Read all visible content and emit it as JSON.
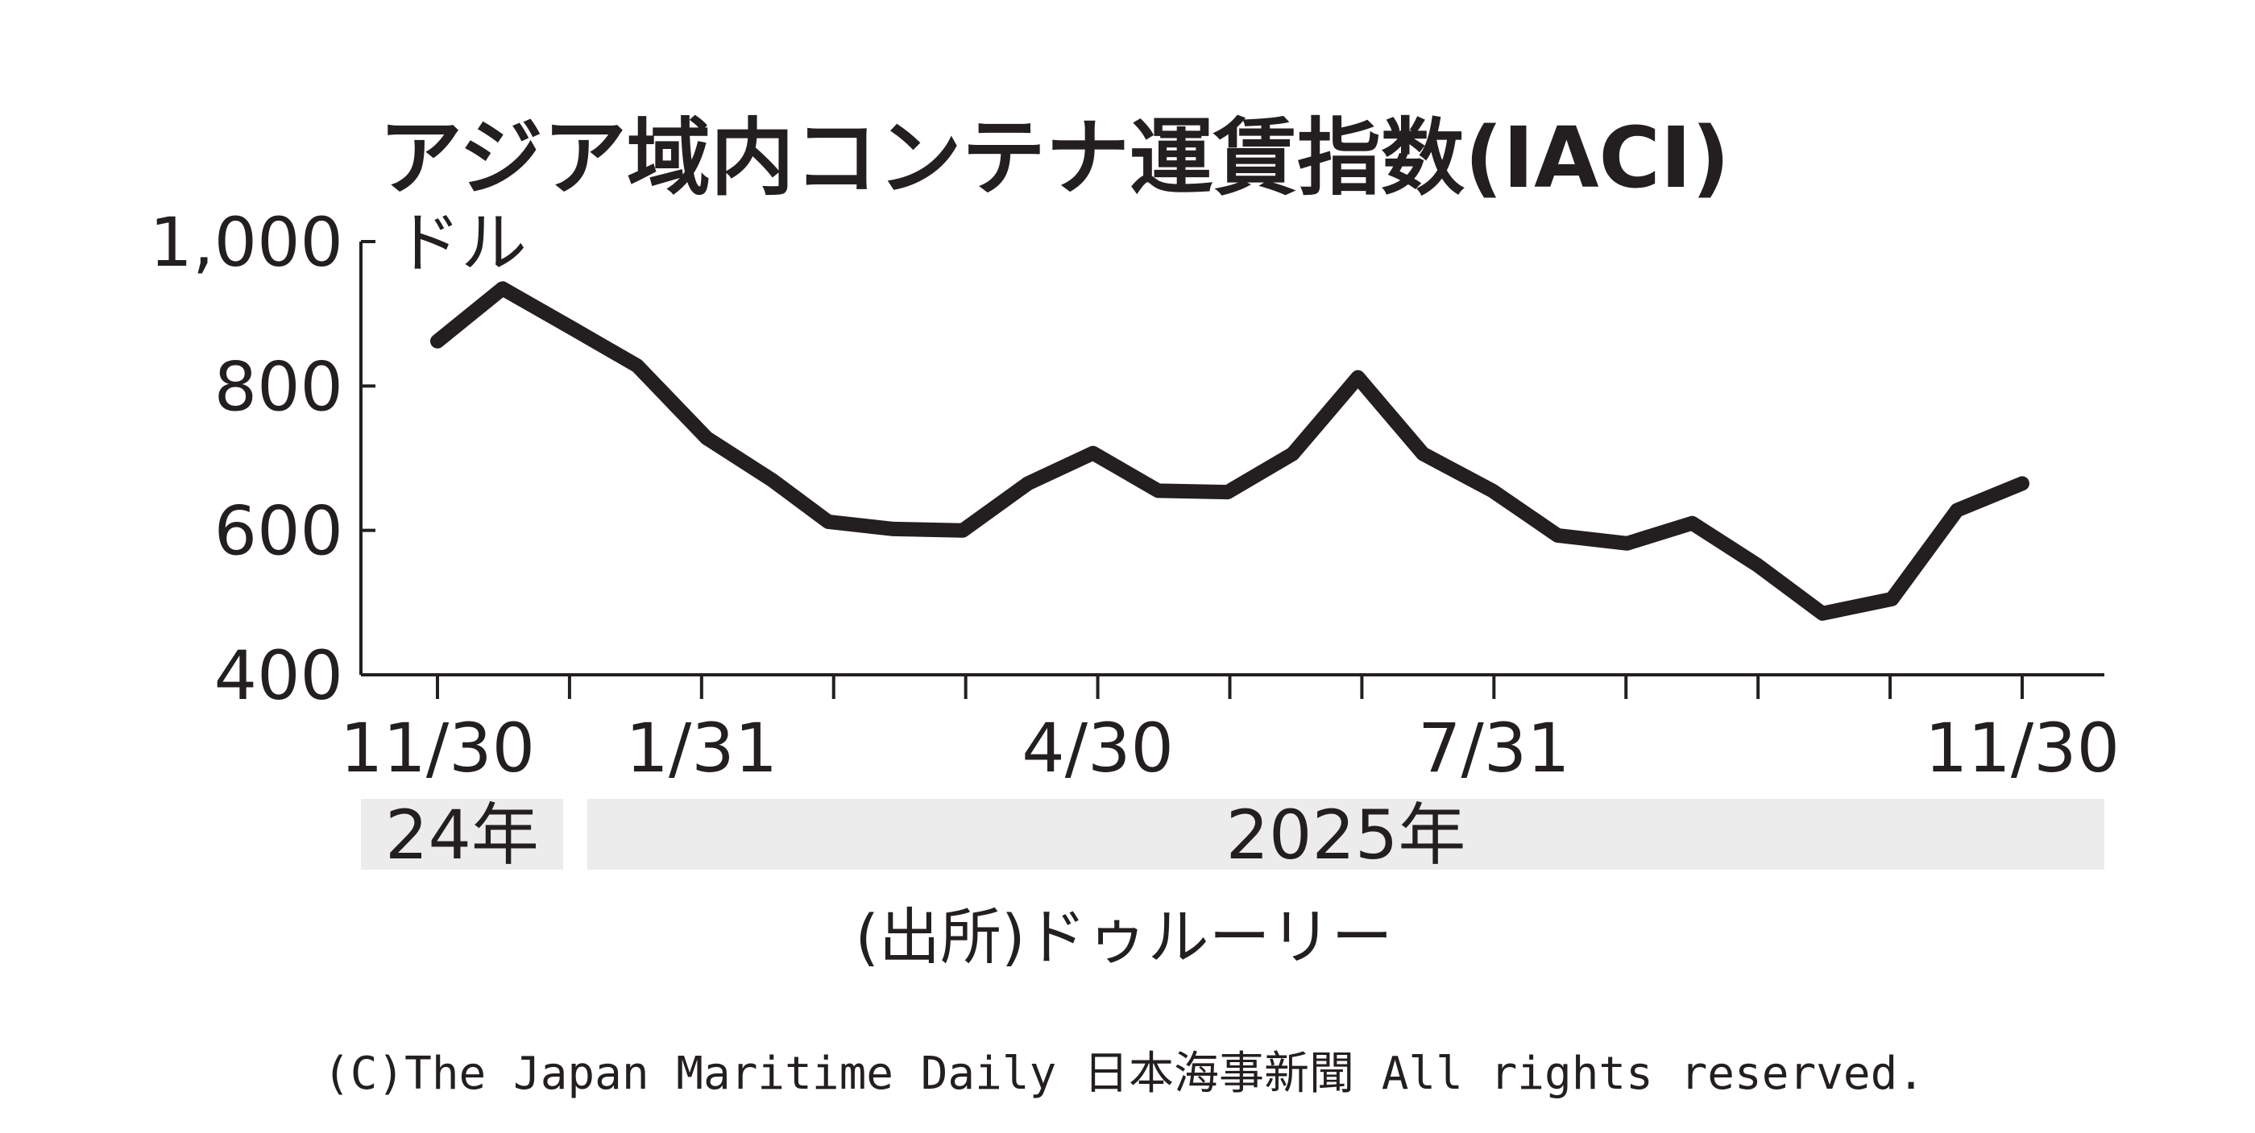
{
  "colors": {
    "ink": "#231f20",
    "band": "#ececec",
    "background": "#ffffff"
  },
  "chart_data": {
    "type": "line",
    "title": "アジア域内コンテナ運賃指数(IACI)",
    "unit": "ドル",
    "ylim": [
      400,
      1000
    ],
    "yticks": [
      {
        "value": 1000,
        "label": "1,000"
      },
      {
        "value": 800,
        "label": "800"
      },
      {
        "value": 600,
        "label": "600"
      },
      {
        "value": 400,
        "label": "400"
      }
    ],
    "x_ticks": [
      {
        "label": "11/30"
      },
      {
        "label": ""
      },
      {
        "label": "1/31"
      },
      {
        "label": ""
      },
      {
        "label": ""
      },
      {
        "label": "4/30"
      },
      {
        "label": ""
      },
      {
        "label": ""
      },
      {
        "label": "7/31"
      },
      {
        "label": ""
      },
      {
        "label": ""
      },
      {
        "label": ""
      },
      {
        "label": "11/30"
      }
    ],
    "x": [
      "2024-11-30",
      "2024-12-15",
      "2024-12-31",
      "2025-01-15",
      "2025-01-31",
      "2025-02-15",
      "2025-02-28",
      "2025-03-15",
      "2025-03-31",
      "2025-04-15",
      "2025-04-30",
      "2025-05-15",
      "2025-05-31",
      "2025-06-15",
      "2025-06-30",
      "2025-07-15",
      "2025-07-31",
      "2025-08-15",
      "2025-08-31",
      "2025-09-15",
      "2025-09-30",
      "2025-10-15",
      "2025-10-31",
      "2025-11-15",
      "2025-11-30"
    ],
    "series": [
      {
        "values": [
          862,
          935,
          880,
          828,
          728,
          670,
          612,
          602,
          600,
          665,
          707,
          655,
          653,
          706,
          812,
          706,
          655,
          593,
          582,
          610,
          552,
          485,
          505,
          628,
          665
        ]
      }
    ],
    "year_bands": [
      {
        "label": "24年"
      },
      {
        "label": "2025年"
      }
    ],
    "grid": false,
    "legend": "none"
  },
  "source": "(出所)ドゥルーリー",
  "copyright": "(C)The Japan Maritime Daily 日本海事新聞 All rights reserved."
}
